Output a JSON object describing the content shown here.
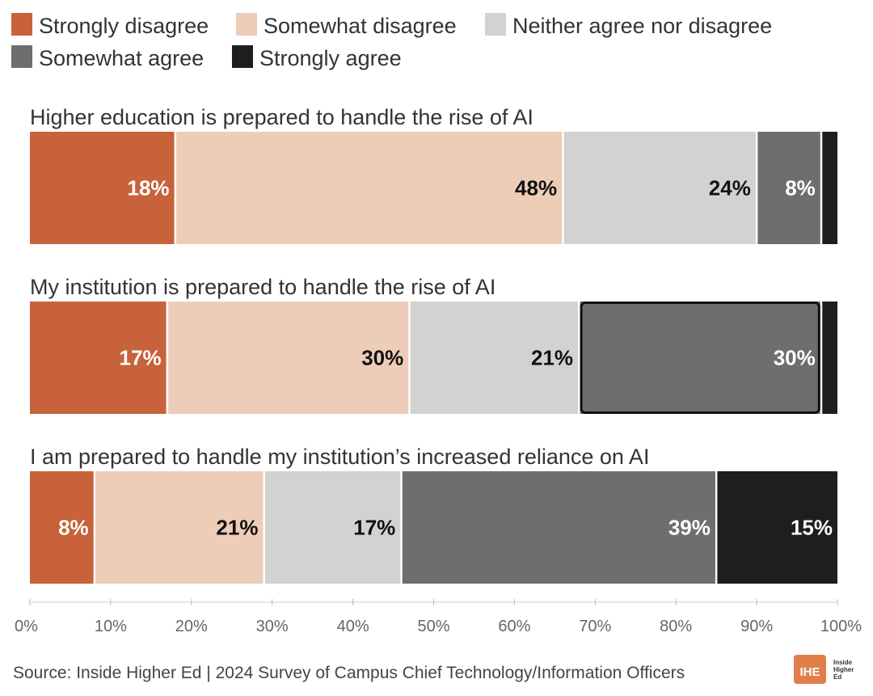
{
  "chart_data": {
    "type": "bar",
    "orientation": "horizontal",
    "stacked": true,
    "legend_position": "top",
    "grid": false,
    "xlim": [
      0,
      100
    ],
    "x_ticks": [
      "0%",
      "10%",
      "20%",
      "30%",
      "40%",
      "50%",
      "60%",
      "70%",
      "80%",
      "90%",
      "100%"
    ],
    "categories": [
      "Higher education is prepared to handle the rise of AI",
      "My institution is prepared to handle the rise of AI",
      "I am prepared to handle my institution’s increased reliance on AI"
    ],
    "series": [
      {
        "name": "Strongly disagree",
        "color": "#C8623A",
        "label_color": "#ffffff",
        "values": [
          18,
          17,
          8
        ],
        "labels": [
          "18%",
          "17%",
          "8%"
        ]
      },
      {
        "name": "Somewhat disagree",
        "color": "#EDCDB7",
        "label_color": "#111111",
        "values": [
          48,
          30,
          21
        ],
        "labels": [
          "48%",
          "30%",
          "21%"
        ]
      },
      {
        "name": "Neither agree nor disagree",
        "color": "#D2D2D0",
        "label_color": "#111111",
        "values": [
          24,
          21,
          17
        ],
        "labels": [
          "24%",
          "21%",
          "17%"
        ]
      },
      {
        "name": "Somewhat agree",
        "color": "#6E6E6E",
        "label_color": "#ffffff",
        "values": [
          8,
          30,
          39
        ],
        "labels": [
          "8%",
          "30%",
          "39%"
        ]
      },
      {
        "name": "Strongly agree",
        "color": "#1E1E1E",
        "label_color": "#ffffff",
        "values": [
          2,
          2,
          15
        ],
        "labels": [
          "",
          "",
          "15%"
        ]
      }
    ],
    "highlight": {
      "category_index": 1,
      "series_index": 3
    }
  },
  "source": "Source: Inside Higher Ed | 2024 Survey of Campus Chief Technology/Information Officers",
  "logo": {
    "mark": "IHE",
    "text": "Inside Higher Ed",
    "color": "#E07E4C"
  }
}
